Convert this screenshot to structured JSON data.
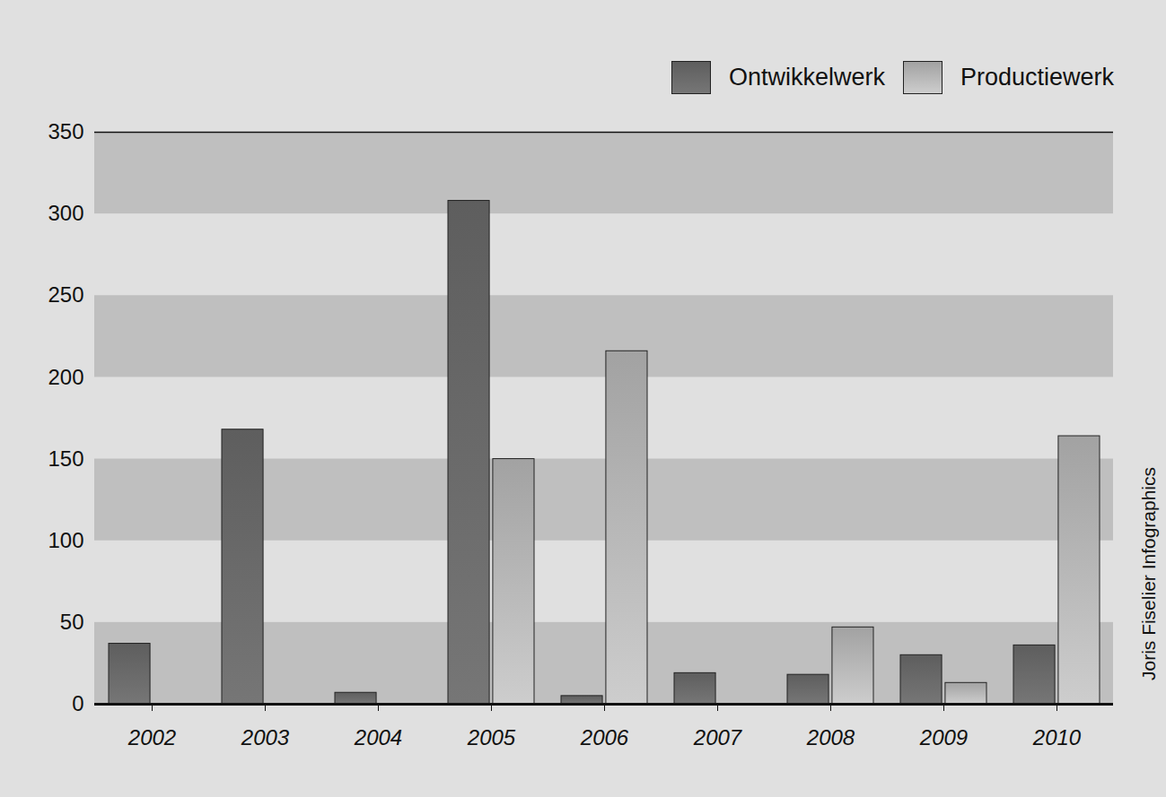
{
  "chart_data": {
    "type": "bar",
    "annotations": [
      "Joris Fiselier Infographics"
    ],
    "categories": [
      "2002",
      "2003",
      "2004",
      "2005",
      "2006",
      "2007",
      "2008",
      "2009",
      "2010"
    ],
    "series": [
      {
        "name": "Ontwikkelwerk",
        "color": "#6a6a6a",
        "values": [
          37,
          168,
          7,
          308,
          5,
          19,
          18,
          30,
          36
        ]
      },
      {
        "name": "Productiewerk",
        "color": "#b8b8b8",
        "values": [
          null,
          null,
          null,
          150,
          216,
          null,
          47,
          13,
          164
        ]
      }
    ],
    "ylim": [
      0,
      350
    ],
    "yticks": [
      0,
      50,
      100,
      150,
      200,
      250,
      300,
      350
    ],
    "grid": true,
    "legend": "top-right"
  }
}
